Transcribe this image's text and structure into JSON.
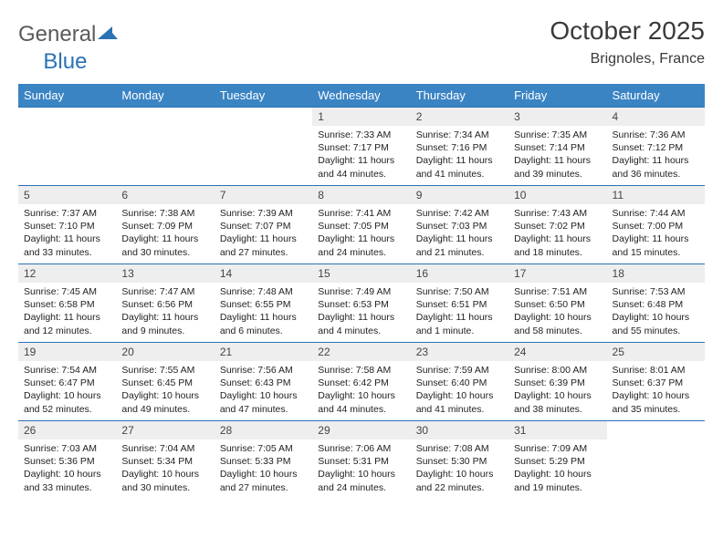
{
  "logo": {
    "part1": "General",
    "part2": "Blue"
  },
  "title": "October 2025",
  "location": "Brignoles, France",
  "colors": {
    "header_bg": "#3b84c4",
    "header_text": "#ffffff",
    "row_border": "#2a72b5",
    "daynum_bg": "#eeeeee",
    "logo_gray": "#5a5a5a",
    "logo_blue": "#2a72b5"
  },
  "weekdays": [
    "Sunday",
    "Monday",
    "Tuesday",
    "Wednesday",
    "Thursday",
    "Friday",
    "Saturday"
  ],
  "weeks": [
    [
      {
        "n": "",
        "sr": "",
        "ss": "",
        "dl": ""
      },
      {
        "n": "",
        "sr": "",
        "ss": "",
        "dl": ""
      },
      {
        "n": "",
        "sr": "",
        "ss": "",
        "dl": ""
      },
      {
        "n": "1",
        "sr": "Sunrise: 7:33 AM",
        "ss": "Sunset: 7:17 PM",
        "dl": "Daylight: 11 hours and 44 minutes."
      },
      {
        "n": "2",
        "sr": "Sunrise: 7:34 AM",
        "ss": "Sunset: 7:16 PM",
        "dl": "Daylight: 11 hours and 41 minutes."
      },
      {
        "n": "3",
        "sr": "Sunrise: 7:35 AM",
        "ss": "Sunset: 7:14 PM",
        "dl": "Daylight: 11 hours and 39 minutes."
      },
      {
        "n": "4",
        "sr": "Sunrise: 7:36 AM",
        "ss": "Sunset: 7:12 PM",
        "dl": "Daylight: 11 hours and 36 minutes."
      }
    ],
    [
      {
        "n": "5",
        "sr": "Sunrise: 7:37 AM",
        "ss": "Sunset: 7:10 PM",
        "dl": "Daylight: 11 hours and 33 minutes."
      },
      {
        "n": "6",
        "sr": "Sunrise: 7:38 AM",
        "ss": "Sunset: 7:09 PM",
        "dl": "Daylight: 11 hours and 30 minutes."
      },
      {
        "n": "7",
        "sr": "Sunrise: 7:39 AM",
        "ss": "Sunset: 7:07 PM",
        "dl": "Daylight: 11 hours and 27 minutes."
      },
      {
        "n": "8",
        "sr": "Sunrise: 7:41 AM",
        "ss": "Sunset: 7:05 PM",
        "dl": "Daylight: 11 hours and 24 minutes."
      },
      {
        "n": "9",
        "sr": "Sunrise: 7:42 AM",
        "ss": "Sunset: 7:03 PM",
        "dl": "Daylight: 11 hours and 21 minutes."
      },
      {
        "n": "10",
        "sr": "Sunrise: 7:43 AM",
        "ss": "Sunset: 7:02 PM",
        "dl": "Daylight: 11 hours and 18 minutes."
      },
      {
        "n": "11",
        "sr": "Sunrise: 7:44 AM",
        "ss": "Sunset: 7:00 PM",
        "dl": "Daylight: 11 hours and 15 minutes."
      }
    ],
    [
      {
        "n": "12",
        "sr": "Sunrise: 7:45 AM",
        "ss": "Sunset: 6:58 PM",
        "dl": "Daylight: 11 hours and 12 minutes."
      },
      {
        "n": "13",
        "sr": "Sunrise: 7:47 AM",
        "ss": "Sunset: 6:56 PM",
        "dl": "Daylight: 11 hours and 9 minutes."
      },
      {
        "n": "14",
        "sr": "Sunrise: 7:48 AM",
        "ss": "Sunset: 6:55 PM",
        "dl": "Daylight: 11 hours and 6 minutes."
      },
      {
        "n": "15",
        "sr": "Sunrise: 7:49 AM",
        "ss": "Sunset: 6:53 PM",
        "dl": "Daylight: 11 hours and 4 minutes."
      },
      {
        "n": "16",
        "sr": "Sunrise: 7:50 AM",
        "ss": "Sunset: 6:51 PM",
        "dl": "Daylight: 11 hours and 1 minute."
      },
      {
        "n": "17",
        "sr": "Sunrise: 7:51 AM",
        "ss": "Sunset: 6:50 PM",
        "dl": "Daylight: 10 hours and 58 minutes."
      },
      {
        "n": "18",
        "sr": "Sunrise: 7:53 AM",
        "ss": "Sunset: 6:48 PM",
        "dl": "Daylight: 10 hours and 55 minutes."
      }
    ],
    [
      {
        "n": "19",
        "sr": "Sunrise: 7:54 AM",
        "ss": "Sunset: 6:47 PM",
        "dl": "Daylight: 10 hours and 52 minutes."
      },
      {
        "n": "20",
        "sr": "Sunrise: 7:55 AM",
        "ss": "Sunset: 6:45 PM",
        "dl": "Daylight: 10 hours and 49 minutes."
      },
      {
        "n": "21",
        "sr": "Sunrise: 7:56 AM",
        "ss": "Sunset: 6:43 PM",
        "dl": "Daylight: 10 hours and 47 minutes."
      },
      {
        "n": "22",
        "sr": "Sunrise: 7:58 AM",
        "ss": "Sunset: 6:42 PM",
        "dl": "Daylight: 10 hours and 44 minutes."
      },
      {
        "n": "23",
        "sr": "Sunrise: 7:59 AM",
        "ss": "Sunset: 6:40 PM",
        "dl": "Daylight: 10 hours and 41 minutes."
      },
      {
        "n": "24",
        "sr": "Sunrise: 8:00 AM",
        "ss": "Sunset: 6:39 PM",
        "dl": "Daylight: 10 hours and 38 minutes."
      },
      {
        "n": "25",
        "sr": "Sunrise: 8:01 AM",
        "ss": "Sunset: 6:37 PM",
        "dl": "Daylight: 10 hours and 35 minutes."
      }
    ],
    [
      {
        "n": "26",
        "sr": "Sunrise: 7:03 AM",
        "ss": "Sunset: 5:36 PM",
        "dl": "Daylight: 10 hours and 33 minutes."
      },
      {
        "n": "27",
        "sr": "Sunrise: 7:04 AM",
        "ss": "Sunset: 5:34 PM",
        "dl": "Daylight: 10 hours and 30 minutes."
      },
      {
        "n": "28",
        "sr": "Sunrise: 7:05 AM",
        "ss": "Sunset: 5:33 PM",
        "dl": "Daylight: 10 hours and 27 minutes."
      },
      {
        "n": "29",
        "sr": "Sunrise: 7:06 AM",
        "ss": "Sunset: 5:31 PM",
        "dl": "Daylight: 10 hours and 24 minutes."
      },
      {
        "n": "30",
        "sr": "Sunrise: 7:08 AM",
        "ss": "Sunset: 5:30 PM",
        "dl": "Daylight: 10 hours and 22 minutes."
      },
      {
        "n": "31",
        "sr": "Sunrise: 7:09 AM",
        "ss": "Sunset: 5:29 PM",
        "dl": "Daylight: 10 hours and 19 minutes."
      },
      {
        "n": "",
        "sr": "",
        "ss": "",
        "dl": ""
      }
    ]
  ]
}
